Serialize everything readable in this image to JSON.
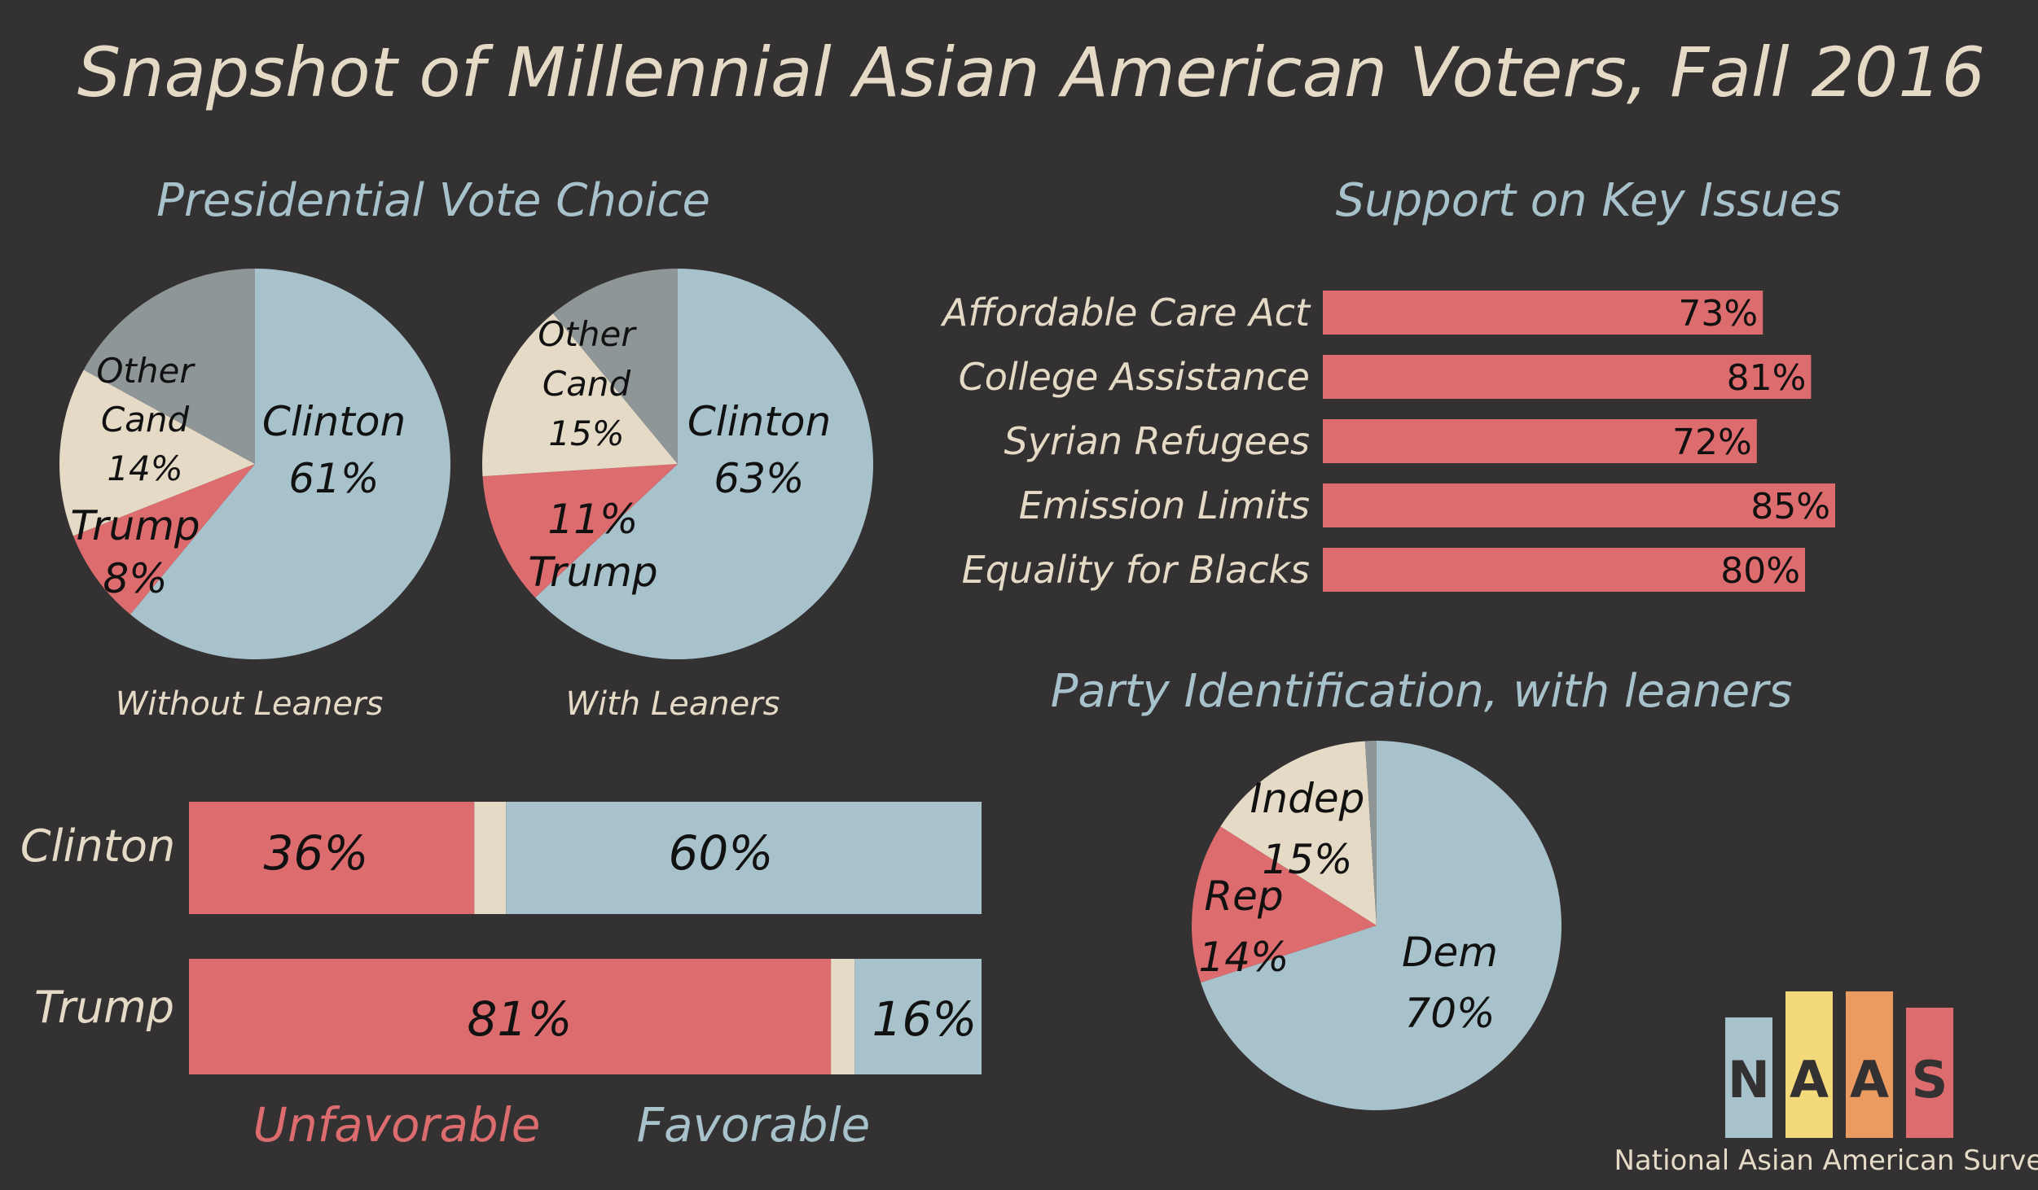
{
  "title": "Snapshot of Millennial Asian American Voters, Fall 2016",
  "colors": {
    "background": "#333132",
    "clinton_dem": "#a7c2cb",
    "trump_rep": "#dd6c6e",
    "other_indep": "#e4dac6",
    "gray": "#8f9698",
    "naas_yellow": "#f3d97a",
    "naas_orange": "#eb9a60"
  },
  "presidential": {
    "heading": "Presidential Vote Choice",
    "without_caption": "Without Leaners",
    "with_caption": "With Leaners",
    "without": {
      "clinton_name": "Clinton",
      "clinton_pct": "61%",
      "trump_name": "Trump",
      "trump_pct": "8%",
      "other_line1": "Other",
      "other_line2": "Cand",
      "other_pct": "14%"
    },
    "with": {
      "clinton_name": "Clinton",
      "clinton_pct": "63%",
      "trump_name": "Trump",
      "trump_pct": "11%",
      "other_line1": "Other",
      "other_line2": "Cand",
      "other_pct": "15%"
    }
  },
  "issues": {
    "heading": "Support on Key Issues",
    "items": [
      {
        "label": "Affordable Care Act",
        "value_text": "73%"
      },
      {
        "label": "College Assistance",
        "value_text": "81%"
      },
      {
        "label": "Syrian Refugees",
        "value_text": "72%"
      },
      {
        "label": "Emission Limits",
        "value_text": "85%"
      },
      {
        "label": "Equality for Blacks",
        "value_text": "80%"
      }
    ]
  },
  "party": {
    "heading": "Party Identification, with leaners",
    "dem_name": "Dem",
    "dem_pct": "70%",
    "rep_name": "Rep",
    "rep_pct": "14%",
    "indep_name": "Indep",
    "indep_pct": "15%"
  },
  "favorability": {
    "rows": [
      {
        "label": "Clinton",
        "unfav_text": "36%",
        "fav_text": "60%"
      },
      {
        "label": "Trump",
        "unfav_text": "81%",
        "fav_text": "16%"
      }
    ],
    "legend_unfav": "Unfavorable",
    "legend_fav": "Favorable"
  },
  "naas": {
    "letters": [
      "N",
      "A",
      "A",
      "S"
    ],
    "name": "National Asian American Survey"
  },
  "chart_data": [
    {
      "type": "pie",
      "title": "Presidential Vote Choice",
      "subtitle": "Without Leaners",
      "categories": [
        "Clinton",
        "Trump",
        "Other Cand",
        ""
      ],
      "values": [
        61,
        8,
        14,
        17
      ]
    },
    {
      "type": "pie",
      "title": "Presidential Vote Choice",
      "subtitle": "With Leaners",
      "categories": [
        "Clinton",
        "Trump",
        "Other Cand",
        ""
      ],
      "values": [
        63,
        11,
        15,
        11
      ]
    },
    {
      "type": "bar",
      "title": "Support on Key Issues",
      "categories": [
        "Affordable Care Act",
        "College Assistance",
        "Syrian Refugees",
        "Emission Limits",
        "Equality for Blacks"
      ],
      "values": [
        73,
        81,
        72,
        85,
        80
      ],
      "xlim": [
        0,
        100
      ]
    },
    {
      "type": "pie",
      "title": "Party Identification, with leaners",
      "categories": [
        "Dem",
        "Rep",
        "Indep",
        ""
      ],
      "values": [
        70,
        14,
        15,
        1
      ]
    },
    {
      "type": "bar",
      "stacked": true,
      "categories": [
        "Clinton",
        "Trump"
      ],
      "series": [
        {
          "name": "Unfavorable",
          "values": [
            36,
            81
          ]
        },
        {
          "name": "",
          "values": [
            4,
            3
          ]
        },
        {
          "name": "Favorable",
          "values": [
            60,
            16
          ]
        }
      ],
      "xlim": [
        0,
        100
      ]
    }
  ]
}
